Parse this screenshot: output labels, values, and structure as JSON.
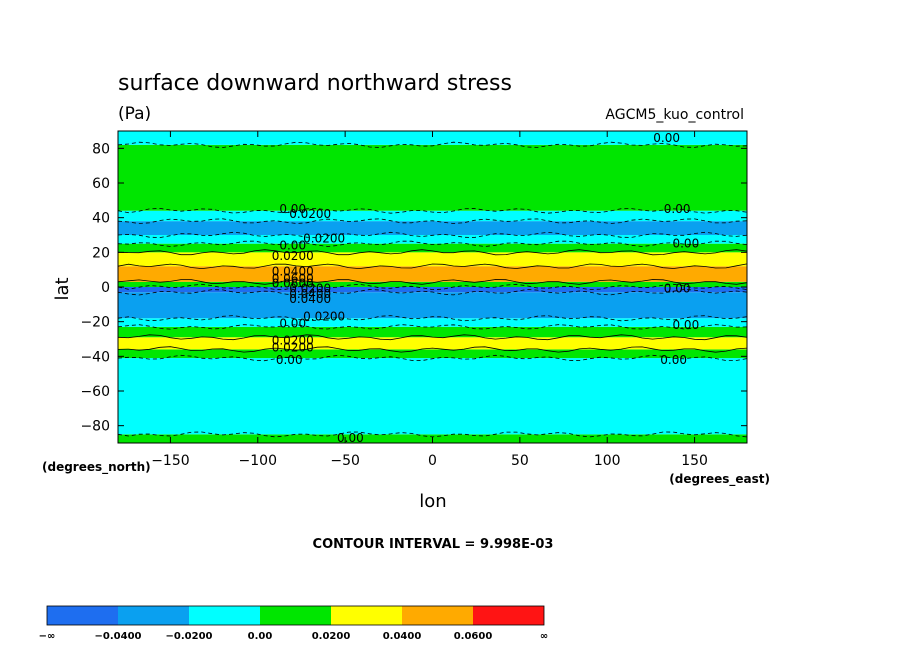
{
  "chart_data": {
    "type": "heatmap",
    "title": "surface downward northward stress",
    "units": "(Pa)",
    "dataset": "AGCM5_kuo_control",
    "xlabel": "lon",
    "ylabel": "lat",
    "x_units": "(degrees_east)",
    "y_units": "(degrees_north)",
    "xlim": [
      -180,
      180
    ],
    "ylim": [
      -90,
      90
    ],
    "x_ticks": [
      -150,
      -100,
      -50,
      0,
      50,
      100,
      150
    ],
    "y_ticks": [
      -80,
      -60,
      -40,
      -20,
      0,
      20,
      40,
      60,
      80
    ],
    "x_tick_labels": [
      "−150",
      "−100",
      "−50",
      "0",
      "50",
      "100",
      "150"
    ],
    "y_tick_labels": [
      "−80",
      "−60",
      "−40",
      "−20",
      "0",
      "20",
      "40",
      "60",
      "80"
    ],
    "contour_interval_text": "CONTOUR INTERVAL = 9.998E-03",
    "legend": {
      "placement": "bottom",
      "labels": [
        "−∞",
        "−0.0400",
        "−0.0200",
        "0.00",
        "0.0200",
        "0.0400",
        "0.0600",
        "∞"
      ],
      "colors": [
        "#1e6ef0",
        "#0aa0f0",
        "#00ffff",
        "#00e600",
        "#ffff00",
        "#ffaa00",
        "#ff1414"
      ]
    },
    "latitude_bands": [
      {
        "lat_min": -90,
        "lat_max": -85,
        "level": 3
      },
      {
        "lat_min": -85,
        "lat_max": -41,
        "level": 2
      },
      {
        "lat_min": -41,
        "lat_max": -36,
        "level": 3
      },
      {
        "lat_min": -36,
        "lat_max": -29,
        "level": 4
      },
      {
        "lat_min": -29,
        "lat_max": -23,
        "level": 3
      },
      {
        "lat_min": -23,
        "lat_max": -18,
        "level": 2
      },
      {
        "lat_min": -18,
        "lat_max": -3,
        "level": 1
      },
      {
        "lat_min": -3,
        "lat_max": 0,
        "level": 0
      },
      {
        "lat_min": 0,
        "lat_max": 3,
        "level": 3
      },
      {
        "lat_min": 3,
        "lat_max": 12,
        "level": 5
      },
      {
        "lat_min": 12,
        "lat_max": 20,
        "level": 4
      },
      {
        "lat_min": 20,
        "lat_max": 25,
        "level": 3
      },
      {
        "lat_min": 25,
        "lat_max": 30,
        "level": 2
      },
      {
        "lat_min": 30,
        "lat_max": 38,
        "level": 1
      },
      {
        "lat_min": 38,
        "lat_max": 44,
        "level": 2
      },
      {
        "lat_min": 44,
        "lat_max": 82,
        "level": 3
      },
      {
        "lat_min": 82,
        "lat_max": 90,
        "level": 2
      }
    ],
    "contour_labels": [
      {
        "text": "0.00",
        "lon": 134,
        "lat": 86
      },
      {
        "text": "0.00",
        "lon": -80,
        "lat": 45
      },
      {
        "text": "0.0200",
        "lon": -70,
        "lat": 42
      },
      {
        "text": "0.00",
        "lon": 140,
        "lat": 45
      },
      {
        "text": "0.0200",
        "lon": -62,
        "lat": 28
      },
      {
        "text": "0.00",
        "lon": -80,
        "lat": 24
      },
      {
        "text": "0.00",
        "lon": 145,
        "lat": 25
      },
      {
        "text": "0.0200",
        "lon": -80,
        "lat": 18
      },
      {
        "text": "0.0400",
        "lon": -80,
        "lat": 9
      },
      {
        "text": "0.0600",
        "lon": -80,
        "lat": 5
      },
      {
        "text": "0.0600",
        "lon": -80,
        "lat": 2
      },
      {
        "text": "0.0200",
        "lon": -70,
        "lat": -1
      },
      {
        "text": "0.0400",
        "lon": -70,
        "lat": -4
      },
      {
        "text": "0.0400",
        "lon": -70,
        "lat": -7
      },
      {
        "text": "0.00",
        "lon": 140,
        "lat": -1
      },
      {
        "text": "0.0200",
        "lon": -62,
        "lat": -17
      },
      {
        "text": "0.00",
        "lon": -80,
        "lat": -21
      },
      {
        "text": "0.00",
        "lon": 145,
        "lat": -22
      },
      {
        "text": "0.0200",
        "lon": -80,
        "lat": -31
      },
      {
        "text": "0.0200",
        "lon": -80,
        "lat": -35
      },
      {
        "text": "0.00",
        "lon": -82,
        "lat": -42
      },
      {
        "text": "0.00",
        "lon": 138,
        "lat": -42
      },
      {
        "text": "0.00",
        "lon": -47,
        "lat": -87
      }
    ]
  }
}
